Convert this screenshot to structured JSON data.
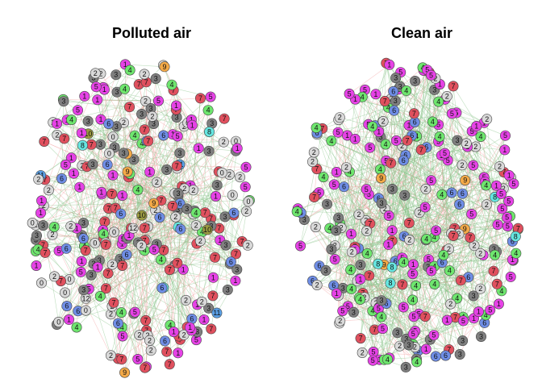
{
  "panels": [
    {
      "title": "Polluted air"
    },
    {
      "title": "Clean air"
    }
  ],
  "colors": {
    "edge_positive": "#8dc58d",
    "edge_negative": "#f2a0a0",
    "node_stroke": "#444444",
    "groups": {
      "0": "#d9d9d9",
      "1": "#e642e6",
      "2": "#d9d9d9",
      "3": "#7f7f7f",
      "4": "#6ee66e",
      "5": "#e642e6",
      "6": "#6f8ee6",
      "7": "#e0505e",
      "8": "#66e6e0",
      "9": "#f4aa48",
      "10": "#9a9a40",
      "11": "#5aa0e6",
      "12": "#d9d9d9"
    }
  }
}
